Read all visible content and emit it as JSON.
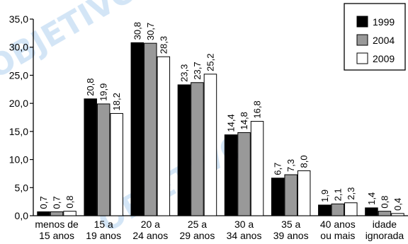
{
  "watermark": {
    "text": "OBJETIVO",
    "color": "#cfe3f5"
  },
  "chart_data": {
    "type": "bar",
    "title": "",
    "xlabel": "",
    "ylabel": "",
    "ylim": [
      0,
      35
    ],
    "yticks": [
      "0,0",
      "5,0",
      "10,0",
      "15,0",
      "20,0",
      "25,0",
      "30,0",
      "35,0"
    ],
    "grid": false,
    "legend_position": "top-right",
    "categories": [
      [
        "menos de",
        "15 anos"
      ],
      [
        "15 a",
        "19 anos"
      ],
      [
        "20 a",
        "24 anos"
      ],
      [
        "25 a",
        "29 anos"
      ],
      [
        "30 a",
        "34 anos"
      ],
      [
        "35 a",
        "39 anos"
      ],
      [
        "40 anos",
        "ou mais"
      ],
      [
        "idade",
        "ignorada"
      ]
    ],
    "series": [
      {
        "name": "1999",
        "color": "#000000",
        "values": [
          0.7,
          20.8,
          30.8,
          23.3,
          14.4,
          6.7,
          1.9,
          1.4
        ],
        "labels": [
          "0,7",
          "20,8",
          "30,8",
          "23,3",
          "14,4",
          "6,7",
          "1,9",
          "1,4"
        ]
      },
      {
        "name": "2004",
        "color": "#999999",
        "values": [
          0.7,
          19.9,
          30.7,
          23.7,
          14.8,
          7.3,
          2.1,
          0.8
        ],
        "labels": [
          "0,7",
          "19,9",
          "30,7",
          "23,7",
          "14,8",
          "7,3",
          "2,1",
          "0,8"
        ]
      },
      {
        "name": "2009",
        "color": "#ffffff",
        "values": [
          0.8,
          18.2,
          28.3,
          25.2,
          16.8,
          8.0,
          2.3,
          0.4
        ],
        "labels": [
          "0,8",
          "18,2",
          "28,3",
          "25,2",
          "16,8",
          "8,0",
          "2,3",
          "0,4"
        ]
      }
    ]
  }
}
